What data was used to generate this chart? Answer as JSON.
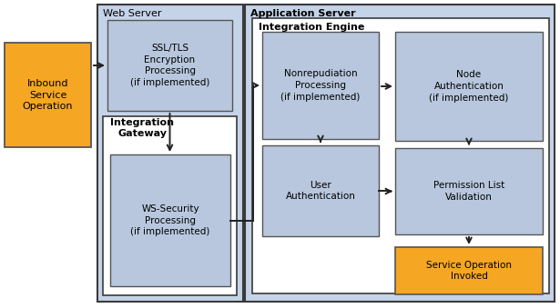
{
  "fig_width": 6.15,
  "fig_height": 3.39,
  "dpi": 100,
  "bg_color": "#ffffff",
  "box_blue_light": "#b8c7de",
  "box_blue_mid": "#c5d3e8",
  "box_white_fill": "#ffffff",
  "box_orange_fill": "#f5a623",
  "edge_dark": "#3a3a3a",
  "edge_med": "#555555",
  "arrow_color": "#222222",
  "web_server_label": "Web Server",
  "app_server_label": "Application Server",
  "int_engine_label": "Integration Engine",
  "int_gateway_label": "Integration\nGateway",
  "inbound_label": "Inbound\nService\nOperation",
  "ssl_label": "SSL/TLS\nEncryption\nProcessing\n(if implemented)",
  "ws_label": "WS-Security\nProcessing\n(if implemented)",
  "nonrep_label": "Nonrepudiation\nProcessing\n(if implemented)",
  "user_auth_label": "User\nAuthentication",
  "node_auth_label": "Node\nAuthentication\n(if implemented)",
  "perm_list_label": "Permission List\nValidation",
  "service_op_label": "Service Operation\nInvoked"
}
